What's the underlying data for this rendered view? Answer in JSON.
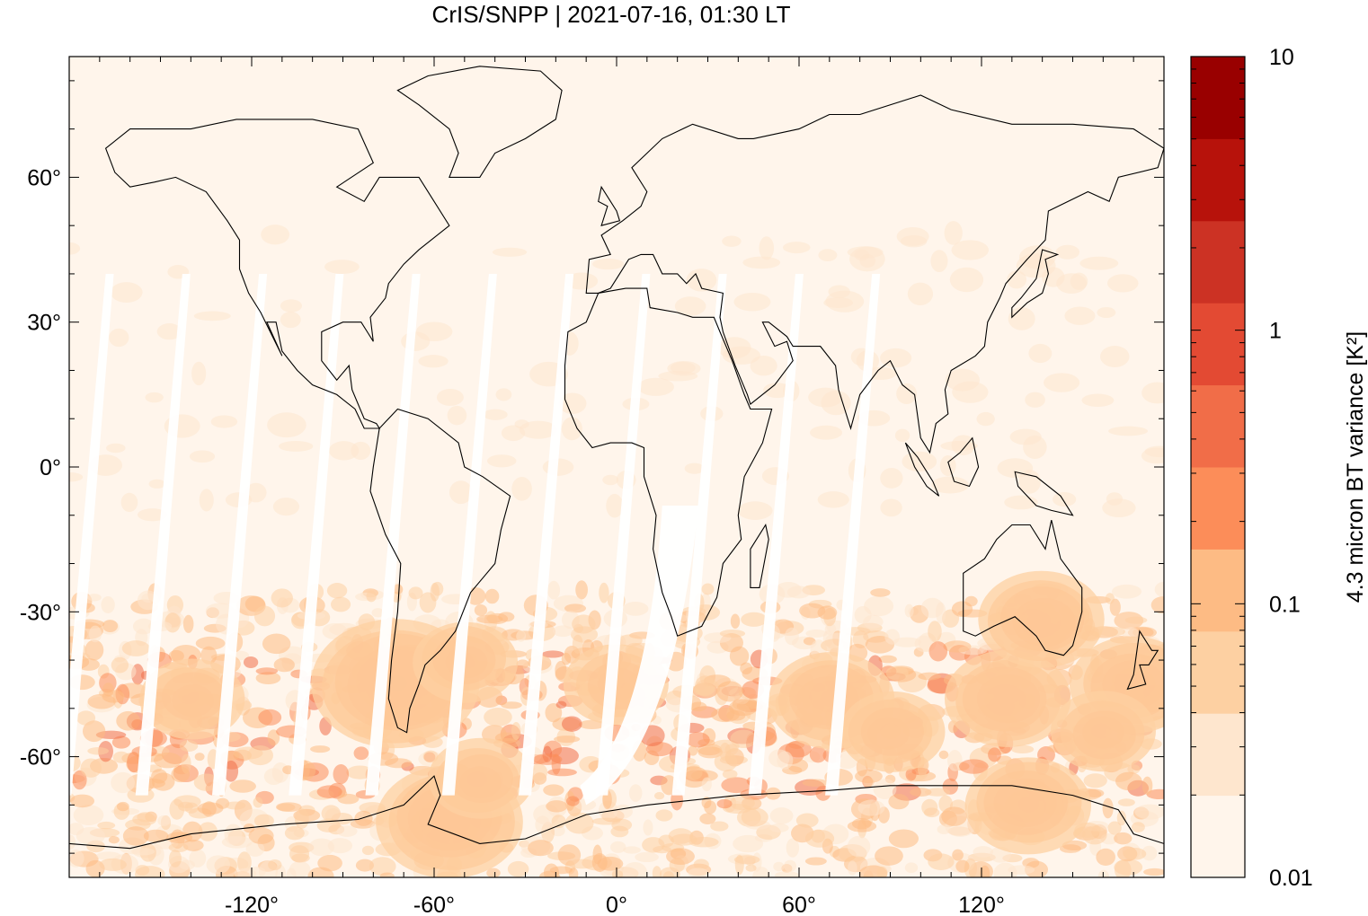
{
  "title": "CrIS/SNPP | 2021-07-16, 01:30 LT",
  "map": {
    "lon_range": [
      -180,
      180
    ],
    "lat_range": [
      -85,
      85
    ],
    "x_ticks": [
      {
        "value": -120,
        "label": "-120°"
      },
      {
        "value": -60,
        "label": "-60°"
      },
      {
        "value": 0,
        "label": "0°"
      },
      {
        "value": 60,
        "label": "60°"
      },
      {
        "value": 120,
        "label": "120°"
      }
    ],
    "y_ticks": [
      {
        "value": 60,
        "label": "60°"
      },
      {
        "value": 30,
        "label": "30°"
      },
      {
        "value": 0,
        "label": "0°"
      },
      {
        "value": -30,
        "label": "-30°"
      },
      {
        "value": -60,
        "label": "-60°"
      }
    ],
    "hotspots": [
      {
        "lon": -72,
        "lat": -45,
        "level": 9
      },
      {
        "lon": -55,
        "lat": -73,
        "level": 8
      },
      {
        "lon": -140,
        "lat": -48,
        "level": 6
      },
      {
        "lon": -50,
        "lat": -40,
        "level": 6
      },
      {
        "lon": -45,
        "lat": -65,
        "level": 6
      },
      {
        "lon": 0,
        "lat": -45,
        "level": 6
      },
      {
        "lon": 70,
        "lat": -48,
        "level": 7
      },
      {
        "lon": 90,
        "lat": -55,
        "level": 6
      },
      {
        "lon": 128,
        "lat": -48,
        "level": 7
      },
      {
        "lon": 140,
        "lat": -32,
        "level": 7
      },
      {
        "lon": 135,
        "lat": -70,
        "level": 7
      },
      {
        "lon": 170,
        "lat": -45,
        "level": 7
      },
      {
        "lon": 160,
        "lat": -55,
        "level": 6
      }
    ]
  },
  "colorbar": {
    "title": "4.3 micron BT variance [K²]",
    "colors": [
      "#fff5eb",
      "#fee6ce",
      "#fdd0a2",
      "#fdbb84",
      "#fc8d59",
      "#f16d48",
      "#e34a33",
      "#cc3224",
      "#b7120b",
      "#990000"
    ],
    "labels": [
      {
        "value": 0.01,
        "label": "0.01"
      },
      {
        "value": 0.1,
        "label": "0.1"
      },
      {
        "value": 1,
        "label": "1"
      },
      {
        "value": 10,
        "label": "10"
      }
    ]
  }
}
